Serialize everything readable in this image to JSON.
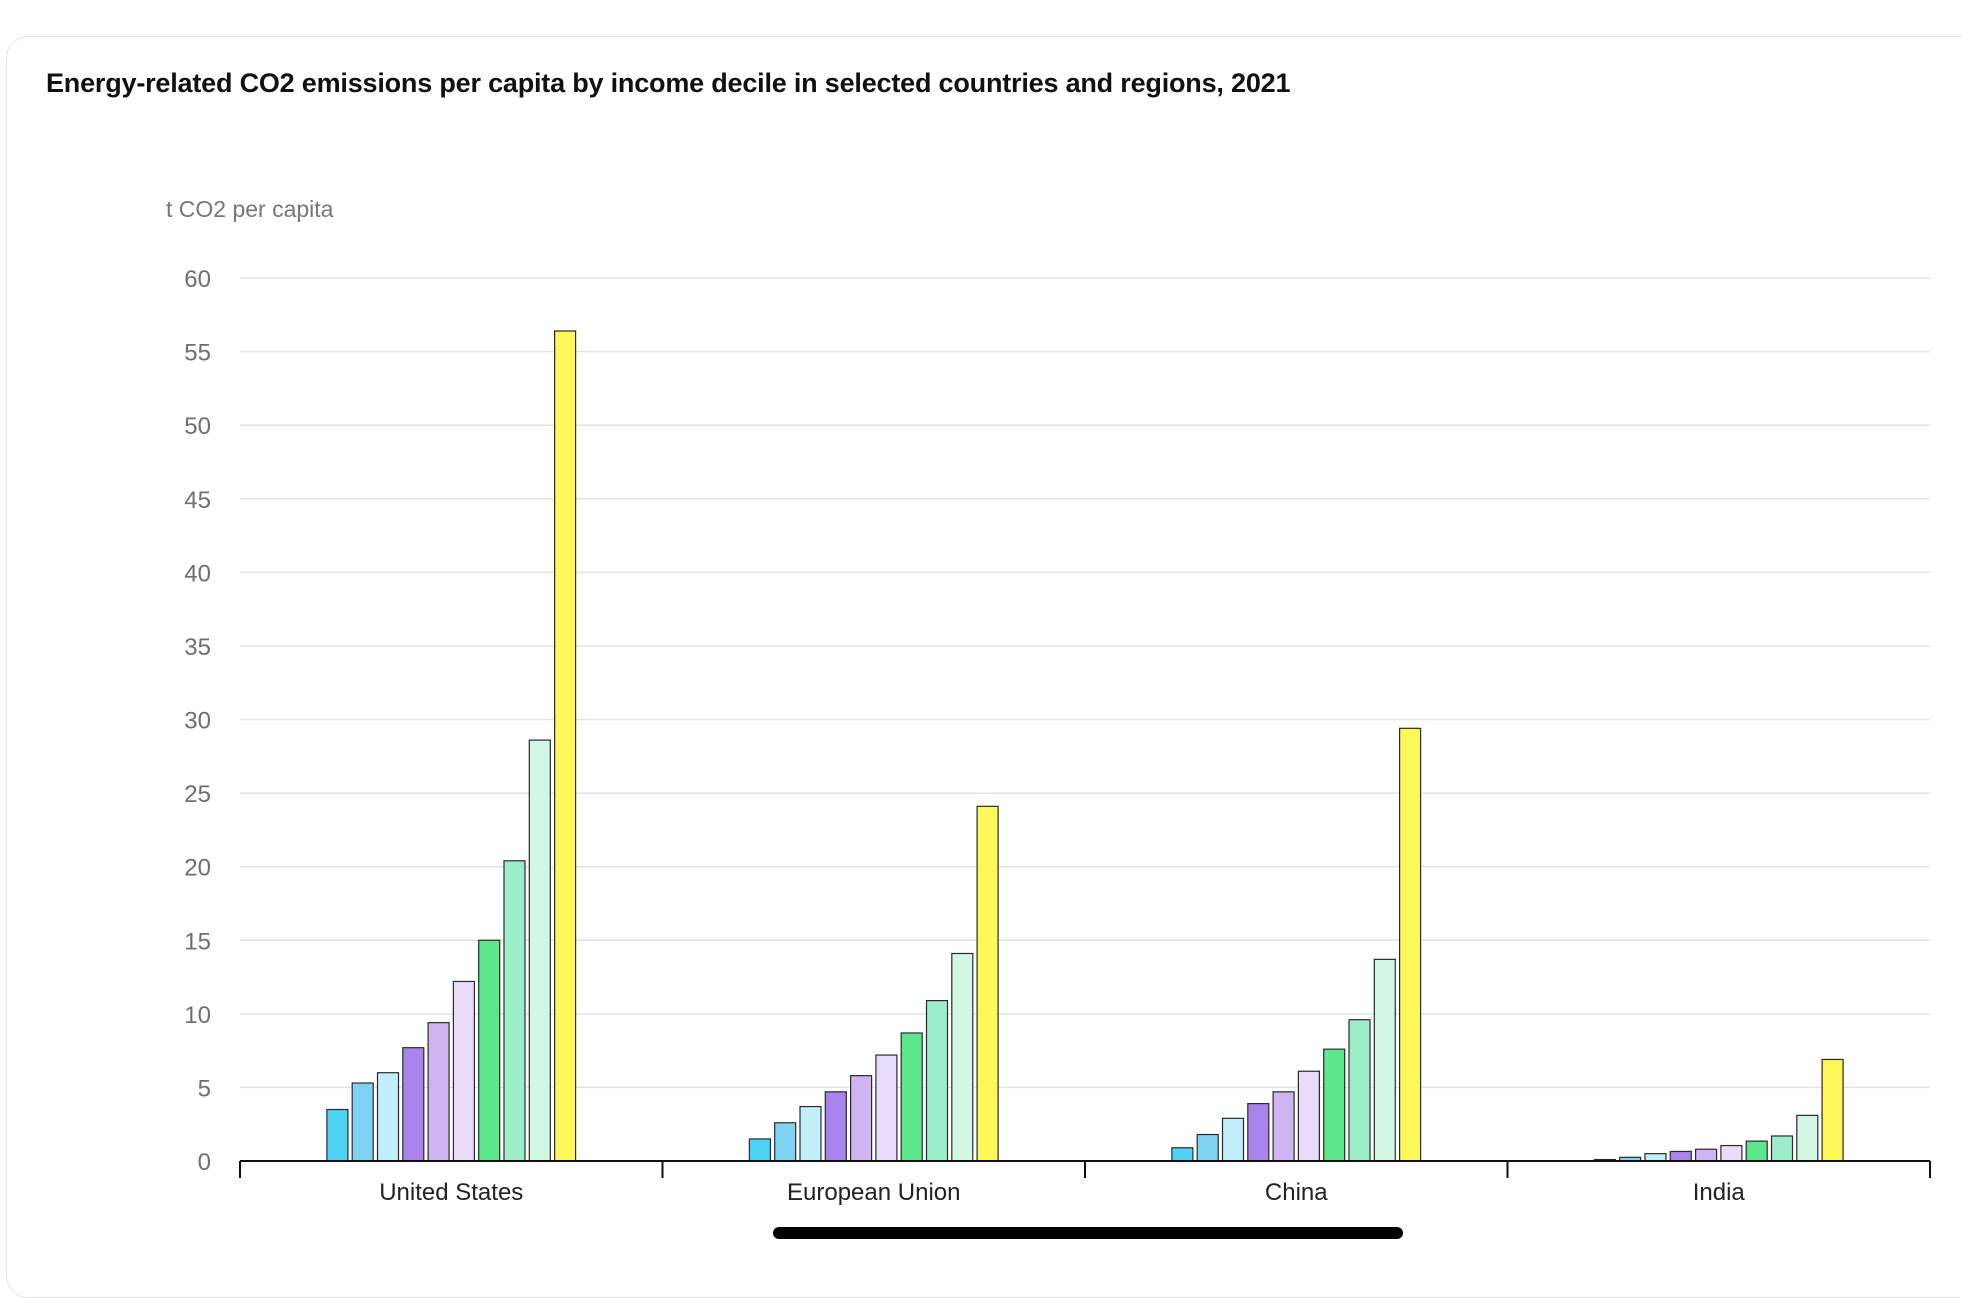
{
  "chart_data": {
    "type": "bar",
    "title": "Energy-related CO2 emissions per capita by income decile in selected countries and regions, 2021",
    "ylabel": "t CO2 per capita",
    "xlabel": "",
    "ylim": [
      0,
      60
    ],
    "yticks": [
      0,
      5,
      10,
      15,
      20,
      25,
      30,
      35,
      40,
      45,
      50,
      55,
      60
    ],
    "grid": true,
    "legend": "none",
    "categories": [
      "United States",
      "European Union",
      "China",
      "India"
    ],
    "series": [
      {
        "color": "#4dd2f6",
        "values": [
          3.5,
          1.5,
          0.9,
          0.1
        ]
      },
      {
        "color": "#7fd3f2",
        "values": [
          5.3,
          2.6,
          1.8,
          0.25
        ]
      },
      {
        "color": "#c2eefb",
        "values": [
          6.0,
          3.7,
          2.9,
          0.5
        ]
      },
      {
        "color": "#a884ec",
        "values": [
          7.7,
          4.7,
          3.9,
          0.65
        ]
      },
      {
        "color": "#cfb4f2",
        "values": [
          9.4,
          5.8,
          4.7,
          0.8
        ]
      },
      {
        "color": "#e8dcfa",
        "values": [
          12.2,
          7.2,
          6.1,
          1.05
        ]
      },
      {
        "color": "#5ee68d",
        "values": [
          15.0,
          8.7,
          7.6,
          1.35
        ]
      },
      {
        "color": "#9ceecb",
        "values": [
          20.4,
          10.9,
          9.6,
          1.7
        ]
      },
      {
        "color": "#d2f7e5",
        "values": [
          28.6,
          14.1,
          13.7,
          3.1
        ]
      },
      {
        "color": "#fef75a",
        "values": [
          56.4,
          24.1,
          29.4,
          6.9
        ]
      }
    ]
  }
}
